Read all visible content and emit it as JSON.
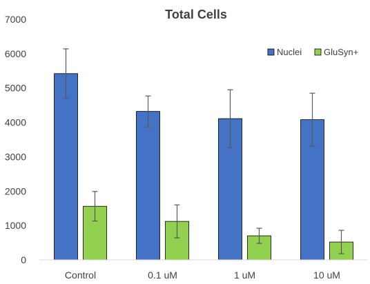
{
  "chart_data": {
    "type": "bar",
    "title": "Total Cells",
    "categories": [
      "Control",
      "0.1 uM",
      "1 uM",
      "10 uM"
    ],
    "series": [
      {
        "name": "Nuclei",
        "color": "#4472c4",
        "values": [
          5420,
          4320,
          4110,
          4080
        ],
        "errors": [
          720,
          450,
          840,
          770
        ]
      },
      {
        "name": "GluSyn+",
        "color": "#92d050",
        "values": [
          1560,
          1120,
          700,
          520
        ],
        "errors": [
          430,
          480,
          220,
          340
        ]
      }
    ],
    "ylim": [
      0,
      7000
    ],
    "yticks": [
      0,
      1000,
      2000,
      3000,
      4000,
      5000,
      6000,
      7000
    ],
    "xlabel": "",
    "ylabel": "",
    "grid": false,
    "legend": "top-right"
  }
}
